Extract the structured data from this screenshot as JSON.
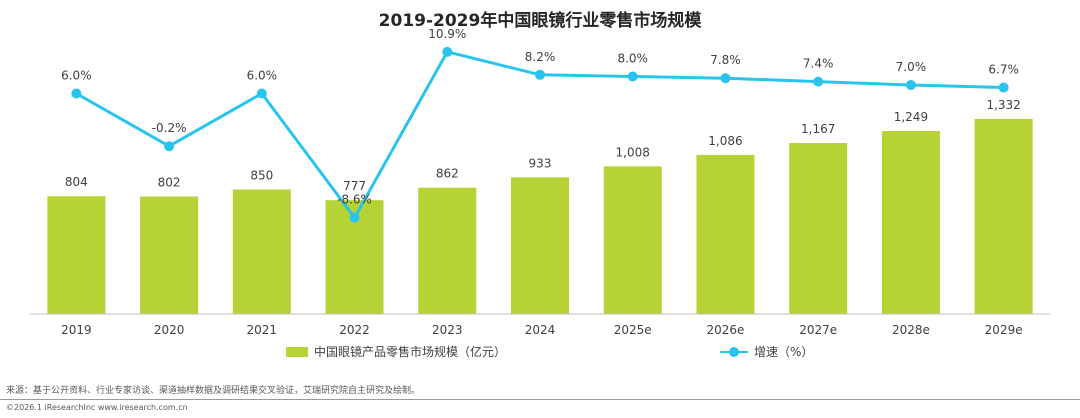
{
  "chart_data": {
    "type": "bar",
    "title": "2019-2029年中国眼镜行业零售市场规模",
    "categories": [
      "2019",
      "2020",
      "2021",
      "2022",
      "2023",
      "2024",
      "2025e",
      "2026e",
      "2027e",
      "2028e",
      "2029e"
    ],
    "series": [
      {
        "name": "中国眼镜产品零售市场规模（亿元）",
        "type": "bar",
        "values": [
          804,
          802,
          850,
          777,
          862,
          933,
          1008,
          1086,
          1167,
          1249,
          1332
        ],
        "labels": [
          "804",
          "802",
          "850",
          "777",
          "862",
          "933",
          "1,008",
          "1,086",
          "1,167",
          "1,249",
          "1,332"
        ],
        "color": "#B5D334"
      },
      {
        "name": "增速（%）",
        "type": "line",
        "values": [
          6.0,
          -0.2,
          6.0,
          -8.6,
          10.9,
          8.2,
          8.0,
          7.8,
          7.4,
          7.0,
          6.7
        ],
        "labels": [
          "6.0%",
          "-0.2%",
          "6.0%",
          "-8.6%",
          "10.9%",
          "8.2%",
          "8.0%",
          "7.8%",
          "7.4%",
          "7.0%",
          "6.7%"
        ],
        "color": "#29C4EE"
      }
    ],
    "legend_position": "bottom",
    "grid": false
  },
  "footer": {
    "source": "来源：基于公开资料、行业专家访谈、渠道抽样数据及调研结果交叉验证，艾瑞研究院自主研究及绘制。",
    "copyright": "©2026.1 iResearchInc www.iresearch.com.cn"
  }
}
